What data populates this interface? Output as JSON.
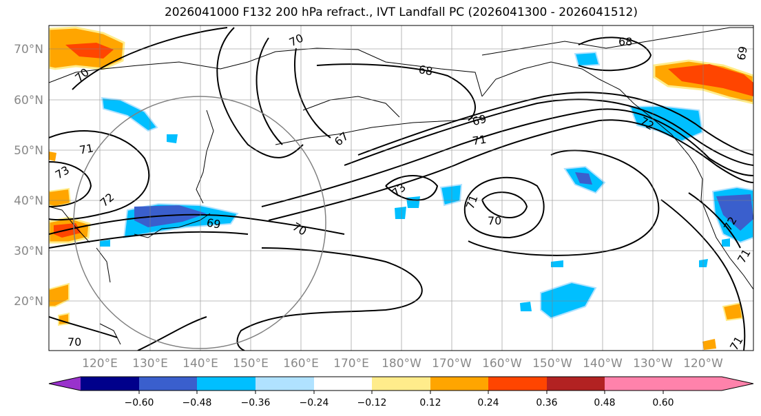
{
  "title": "2026041000 F132 200 hPa refract., IVT Landfall PC (2026041300 - 2026041512)",
  "lat_labels": [
    "70°N",
    "60°N",
    "50°N",
    "40°N",
    "30°N",
    "20°N"
  ],
  "lon_labels": [
    "120°E",
    "130°E",
    "140°E",
    "150°E",
    "160°E",
    "170°E",
    "180°W",
    "170°W",
    "160°W",
    "150°W",
    "140°W",
    "130°W",
    "120°W"
  ],
  "contour_labels": [
    "70",
    "68",
    "70",
    "68",
    "69",
    "67",
    "69",
    "71",
    "71",
    "73",
    "72",
    "69",
    "70",
    "73",
    "71",
    "70",
    "70",
    "71",
    "72",
    "71",
    "72"
  ],
  "colorbar": {
    "ticks": [
      "−0.60",
      "−0.48",
      "−0.36",
      "−0.24",
      "−0.12",
      "0.12",
      "0.24",
      "0.36",
      "0.48",
      "0.60"
    ],
    "colors": [
      "#9932cc",
      "#00008b",
      "#3a5fcd",
      "#00bfff",
      "#b0e2ff",
      "#ffffff",
      "#ffec8b",
      "#ffa500",
      "#ff4500",
      "#b22222",
      "#ff82ab"
    ]
  }
}
